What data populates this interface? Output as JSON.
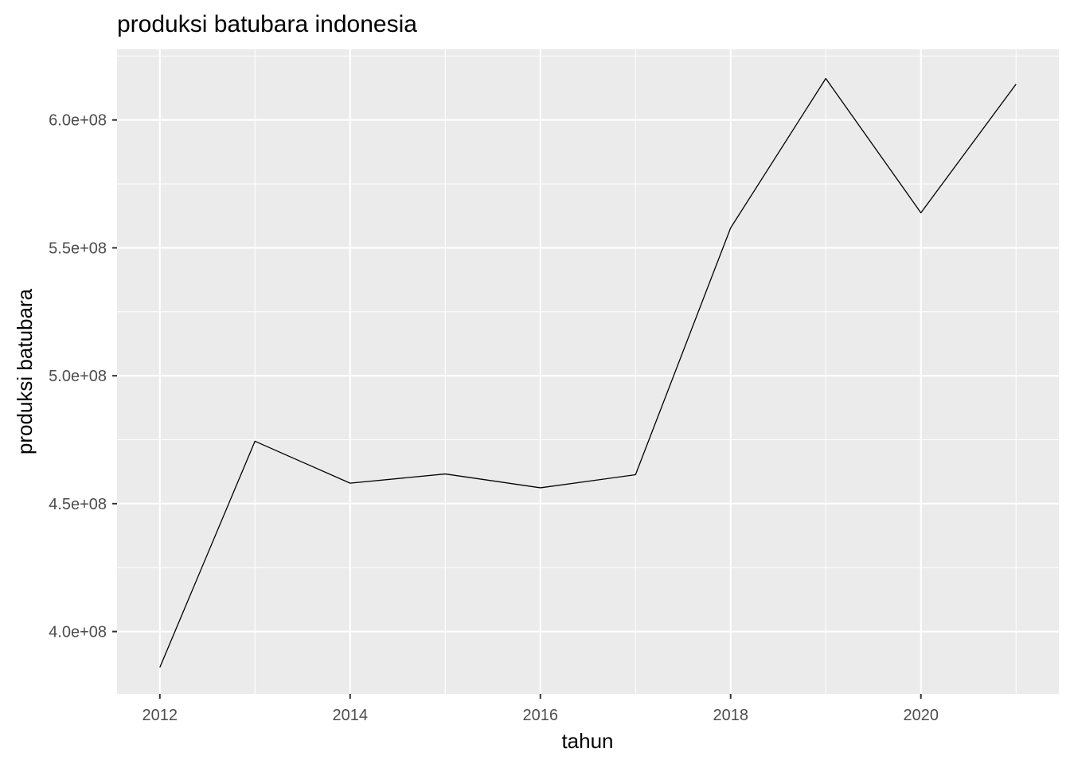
{
  "chart_data": {
    "type": "line",
    "title": "produksi batubara indonesia",
    "xlabel": "tahun",
    "ylabel": "produksi batubara",
    "x": [
      2012,
      2013,
      2014,
      2015,
      2016,
      2017,
      2018,
      2019,
      2020,
      2021
    ],
    "series": [
      {
        "values": [
          386000000,
          474400000,
          458000000,
          461600000,
          456200000,
          461300000,
          557800000,
          616200000,
          563700000,
          614000000
        ]
      }
    ],
    "xlim": [
      2011.55,
      2021.45
    ],
    "ylim": [
      375600000,
      627600000
    ],
    "x_ticks": [
      2012,
      2014,
      2016,
      2018,
      2020
    ],
    "x_tick_labels": [
      "2012",
      "2014",
      "2016",
      "2018",
      "2020"
    ],
    "y_ticks": [
      400000000,
      450000000,
      500000000,
      550000000,
      600000000
    ],
    "y_tick_labels": [
      "4.0e+08",
      "4.5e+08",
      "5.0e+08",
      "5.5e+08",
      "6.0e+08"
    ],
    "grid": true,
    "legend": "none",
    "colors": {
      "panel": "#ebebeb",
      "grid": "#ffffff",
      "line": "#000000",
      "tick_text": "#4d4d4d"
    }
  }
}
